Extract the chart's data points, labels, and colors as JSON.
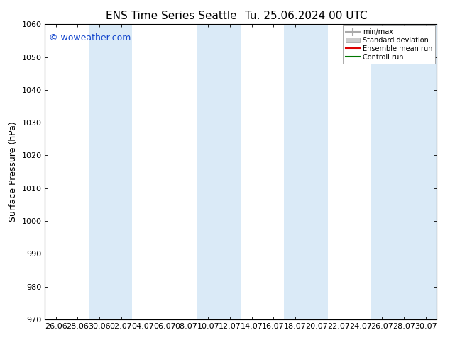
{
  "title_left": "ENS Time Series Seattle",
  "title_right": "Tu. 25.06.2024 00 UTC",
  "ylabel": "Surface Pressure (hPa)",
  "ylim": [
    970,
    1060
  ],
  "yticks": [
    970,
    980,
    990,
    1000,
    1010,
    1020,
    1030,
    1040,
    1050,
    1060
  ],
  "xtick_labels": [
    "26.06",
    "28.06",
    "30.06",
    "02.07",
    "04.07",
    "06.07",
    "08.07",
    "10.07",
    "12.07",
    "14.07",
    "16.07",
    "18.07",
    "20.07",
    "22.07",
    "24.07",
    "26.07",
    "28.07",
    "30.07"
  ],
  "background_color": "#ffffff",
  "band_color": "#daeaf7",
  "band_positions_x": [
    2,
    3,
    7,
    8,
    11,
    12,
    15,
    16,
    17
  ],
  "watermark": "© woweather.com",
  "watermark_color": "#1144cc",
  "legend_labels": [
    "min/max",
    "Standard deviation",
    "Ensemble mean run",
    "Controll run"
  ],
  "legend_colors_line": [
    "#aaaaaa",
    "#bbbbbb",
    "#dd0000",
    "#007700"
  ],
  "title_fontsize": 11,
  "tick_fontsize": 8,
  "ylabel_fontsize": 9
}
